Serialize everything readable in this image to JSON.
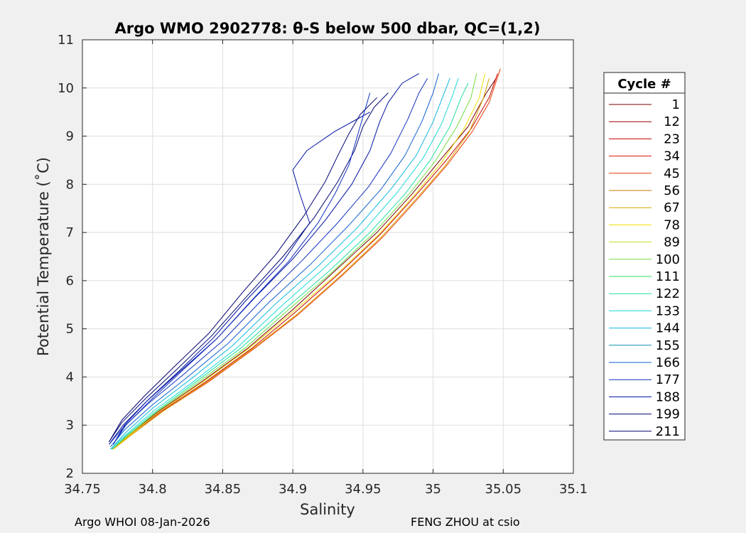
{
  "chart_data": {
    "type": "line",
    "title": "Argo WMO 2902778: θ-S below 500 dbar,  QC=(1,2)",
    "xlabel": "Salinity",
    "ylabel": "Potential Temperature (˚C)",
    "xlim": [
      34.75,
      35.1
    ],
    "ylim": [
      2,
      11
    ],
    "xticks": [
      34.75,
      34.8,
      34.85,
      34.9,
      34.95,
      35,
      35.05,
      35.1
    ],
    "xtick_labels": [
      "34.75",
      "34.8",
      "34.85",
      "34.9",
      "34.95",
      "35",
      "35.05",
      "35.1"
    ],
    "yticks": [
      2,
      3,
      4,
      5,
      6,
      7,
      8,
      9,
      10,
      11
    ],
    "ytick_labels": [
      "2",
      "3",
      "4",
      "5",
      "6",
      "7",
      "8",
      "9",
      "10",
      "11"
    ],
    "grid": true,
    "legend": {
      "title": "Cycle #",
      "placement": "outside-right",
      "entries": [
        {
          "label": "1",
          "color": "#7a0000"
        },
        {
          "label": "12",
          "color": "#a00000"
        },
        {
          "label": "23",
          "color": "#c80000"
        },
        {
          "label": "34",
          "color": "#dc1000"
        },
        {
          "label": "45",
          "color": "#e83800"
        },
        {
          "label": "56",
          "color": "#c87800"
        },
        {
          "label": "67",
          "color": "#d8a800"
        },
        {
          "label": "78",
          "color": "#f0e000"
        },
        {
          "label": "89",
          "color": "#c8e020"
        },
        {
          "label": "100",
          "color": "#70e040"
        },
        {
          "label": "111",
          "color": "#30e060"
        },
        {
          "label": "122",
          "color": "#20e0a0"
        },
        {
          "label": "133",
          "color": "#20d8d8"
        },
        {
          "label": "144",
          "color": "#10b8e0"
        },
        {
          "label": "155",
          "color": "#1090b0"
        },
        {
          "label": "166",
          "color": "#1060d0"
        },
        {
          "label": "177",
          "color": "#1030c0"
        },
        {
          "label": "188",
          "color": "#0010a0"
        },
        {
          "label": "199",
          "color": "#000870"
        },
        {
          "label": "211",
          "color": "#000070"
        }
      ]
    },
    "series": [
      {
        "color": "#7a0000",
        "x": [
          34.771,
          34.783,
          34.805,
          34.835,
          34.868,
          34.9,
          34.93,
          34.96,
          34.985,
          35.005,
          35.025,
          35.038,
          35.045
        ],
        "y": [
          2.5,
          2.8,
          3.3,
          3.9,
          4.6,
          5.4,
          6.2,
          7.0,
          7.8,
          8.5,
          9.2,
          9.9,
          10.2
        ]
      },
      {
        "color": "#c80000",
        "x": [
          34.771,
          34.784,
          34.807,
          34.838,
          34.871,
          34.902,
          34.933,
          34.962,
          34.987,
          35.008,
          35.027,
          35.04,
          35.046
        ],
        "y": [
          2.5,
          2.8,
          3.3,
          3.9,
          4.6,
          5.35,
          6.15,
          6.95,
          7.75,
          8.45,
          9.15,
          9.8,
          10.3
        ]
      },
      {
        "color": "#e83800",
        "x": [
          34.772,
          34.785,
          34.808,
          34.84,
          34.873,
          34.904,
          34.935,
          34.964,
          34.989,
          35.01,
          35.028,
          35.04,
          35.048
        ],
        "y": [
          2.5,
          2.8,
          3.3,
          3.9,
          4.6,
          5.3,
          6.1,
          6.9,
          7.7,
          8.4,
          9.1,
          9.7,
          10.4
        ]
      },
      {
        "color": "#d8a800",
        "x": [
          34.772,
          34.785,
          34.808,
          34.839,
          34.872,
          34.903,
          34.934,
          34.963,
          34.988,
          35.009,
          35.026,
          35.036,
          35.04
        ],
        "y": [
          2.5,
          2.8,
          3.3,
          3.9,
          4.6,
          5.3,
          6.1,
          6.9,
          7.7,
          8.4,
          9.1,
          9.8,
          10.2
        ]
      },
      {
        "color": "#f0e000",
        "x": [
          34.772,
          34.784,
          34.806,
          34.836,
          34.869,
          34.9,
          34.932,
          34.961,
          34.986,
          35.006,
          35.022,
          35.033,
          35.037
        ],
        "y": [
          2.5,
          2.8,
          3.3,
          3.9,
          4.6,
          5.35,
          6.15,
          6.95,
          7.75,
          8.45,
          9.15,
          9.8,
          10.3
        ]
      },
      {
        "color": "#70e040",
        "x": [
          34.771,
          34.783,
          34.804,
          34.833,
          34.866,
          34.897,
          34.929,
          34.958,
          34.983,
          35.002,
          35.017,
          35.027,
          35.031
        ],
        "y": [
          2.5,
          2.8,
          3.3,
          3.9,
          4.6,
          5.4,
          6.2,
          7.0,
          7.8,
          8.5,
          9.2,
          9.8,
          10.3
        ]
      },
      {
        "color": "#20e0a0",
        "x": [
          34.771,
          34.782,
          34.803,
          34.831,
          34.863,
          34.894,
          34.926,
          34.955,
          34.98,
          34.998,
          35.012,
          35.02,
          35.025
        ],
        "y": [
          2.5,
          2.8,
          3.3,
          3.9,
          4.6,
          5.4,
          6.2,
          7.0,
          7.8,
          8.5,
          9.2,
          9.8,
          10.1
        ]
      },
      {
        "color": "#20d8d8",
        "x": [
          34.77,
          34.781,
          34.801,
          34.829,
          34.86,
          34.891,
          34.922,
          34.951,
          34.975,
          34.993,
          35.006,
          35.014,
          35.018
        ],
        "y": [
          2.5,
          2.8,
          3.3,
          3.9,
          4.6,
          5.45,
          6.25,
          7.05,
          7.85,
          8.55,
          9.25,
          9.85,
          10.2
        ]
      },
      {
        "color": "#10b8e0",
        "x": [
          34.77,
          34.781,
          34.8,
          34.827,
          34.857,
          34.887,
          34.918,
          34.946,
          34.97,
          34.988,
          35.0,
          35.008,
          35.012
        ],
        "y": [
          2.5,
          2.85,
          3.35,
          3.95,
          4.65,
          5.5,
          6.3,
          7.1,
          7.9,
          8.6,
          9.3,
          9.9,
          10.2
        ]
      },
      {
        "color": "#1060d0",
        "x": [
          34.77,
          34.78,
          34.799,
          34.825,
          34.854,
          34.883,
          34.913,
          34.94,
          34.963,
          34.98,
          34.992,
          35.0,
          35.004
        ],
        "y": [
          2.55,
          2.9,
          3.4,
          4.0,
          4.7,
          5.55,
          6.35,
          7.15,
          7.9,
          8.6,
          9.3,
          9.9,
          10.3
        ]
      },
      {
        "color": "#1030c0",
        "x": [
          34.769,
          34.779,
          34.797,
          34.822,
          34.85,
          34.878,
          34.906,
          34.932,
          34.954,
          34.97,
          34.982,
          34.99,
          34.996
        ],
        "y": [
          2.6,
          2.95,
          3.45,
          4.05,
          4.75,
          5.6,
          6.4,
          7.2,
          7.95,
          8.65,
          9.35,
          9.9,
          10.2
        ]
      },
      {
        "color": "#0010a0",
        "x": [
          34.769,
          34.779,
          34.796,
          34.819,
          34.846,
          34.873,
          34.9,
          34.923,
          34.942,
          34.955,
          34.962,
          34.968,
          34.978,
          34.99
        ],
        "y": [
          2.6,
          3.0,
          3.5,
          4.1,
          4.8,
          5.65,
          6.45,
          7.25,
          8.0,
          8.7,
          9.3,
          9.7,
          10.1,
          10.3
        ]
      },
      {
        "color": "#000870",
        "x": [
          34.769,
          34.778,
          34.795,
          34.817,
          34.842,
          34.868,
          34.893,
          34.915,
          34.932,
          34.944,
          34.95,
          34.958,
          34.968
        ],
        "y": [
          2.65,
          3.05,
          3.55,
          4.15,
          4.85,
          5.7,
          6.5,
          7.3,
          8.05,
          8.7,
          9.2,
          9.6,
          9.9
        ]
      },
      {
        "color": "#000070",
        "x": [
          34.769,
          34.778,
          34.794,
          34.815,
          34.84,
          34.864,
          34.888,
          34.908,
          34.923,
          34.933,
          34.94,
          34.948,
          34.96
        ],
        "y": [
          2.65,
          3.1,
          3.6,
          4.2,
          4.9,
          5.75,
          6.55,
          7.35,
          8.05,
          8.65,
          9.05,
          9.45,
          9.8
        ]
      },
      {
        "color": "#0010a0",
        "x": [
          34.772,
          34.78,
          34.796,
          34.818,
          34.843,
          34.867,
          34.893,
          34.912,
          34.905,
          34.9,
          34.91,
          34.93,
          34.955
        ],
        "y": [
          2.6,
          3.0,
          3.5,
          4.1,
          4.8,
          5.6,
          6.4,
          7.2,
          7.8,
          8.3,
          8.7,
          9.1,
          9.5
        ]
      },
      {
        "color": "#1030c0",
        "x": [
          34.772,
          34.781,
          34.798,
          34.82,
          34.846,
          34.871,
          34.897,
          34.918,
          34.93,
          34.94,
          34.948,
          34.955
        ],
        "y": [
          2.6,
          3.0,
          3.5,
          4.1,
          4.8,
          5.6,
          6.4,
          7.2,
          7.8,
          8.4,
          9.2,
          9.9
        ]
      }
    ]
  },
  "footer": {
    "left": "Argo WHOI 08-Jan-2026",
    "right": "FENG ZHOU at csio"
  }
}
